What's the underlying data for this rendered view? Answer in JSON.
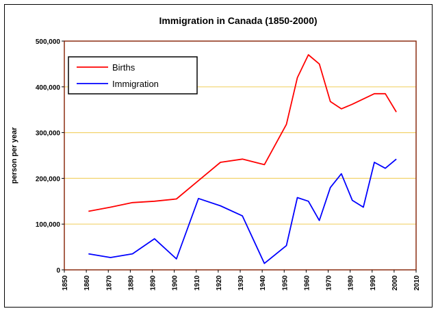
{
  "chart_data": {
    "type": "line",
    "title": "Immigration in Canada (1850-2000)",
    "xlabel": "",
    "ylabel": "person per year",
    "xlim": [
      1850,
      2010
    ],
    "ylim": [
      0,
      500000
    ],
    "x_ticks": [
      "1850",
      "1860",
      "1870",
      "1880",
      "1890",
      "1900",
      "1910",
      "1920",
      "1930",
      "1940",
      "1950",
      "1960",
      "1970",
      "1980",
      "1990",
      "2000",
      "2010"
    ],
    "y_ticks": [
      "0",
      "100,000",
      "200,000",
      "300,000",
      "400,000",
      "500,000"
    ],
    "grid": true,
    "legend": "top-left",
    "series": [
      {
        "name": "Births",
        "color": "#ff0000",
        "x": [
          1861,
          1871,
          1881,
          1891,
          1901,
          1911,
          1921,
          1931,
          1941,
          1951,
          1956,
          1961,
          1966,
          1971,
          1976,
          1981,
          1991,
          1996,
          2001
        ],
        "values": [
          128000,
          137000,
          147000,
          150000,
          155000,
          195000,
          235000,
          242000,
          230000,
          318000,
          420000,
          470000,
          450000,
          368000,
          352000,
          362000,
          385000,
          385000,
          345000
        ]
      },
      {
        "name": "Immigration",
        "color": "#0000ff",
        "x": [
          1861,
          1871,
          1881,
          1891,
          1901,
          1911,
          1921,
          1931,
          1941,
          1951,
          1956,
          1961,
          1966,
          1971,
          1976,
          1981,
          1986,
          1991,
          1996,
          2001
        ],
        "values": [
          35000,
          27000,
          35000,
          68000,
          24000,
          156000,
          140000,
          118000,
          14000,
          53000,
          158000,
          150000,
          108000,
          180000,
          210000,
          152000,
          137000,
          235000,
          222000,
          242000
        ]
      }
    ]
  }
}
